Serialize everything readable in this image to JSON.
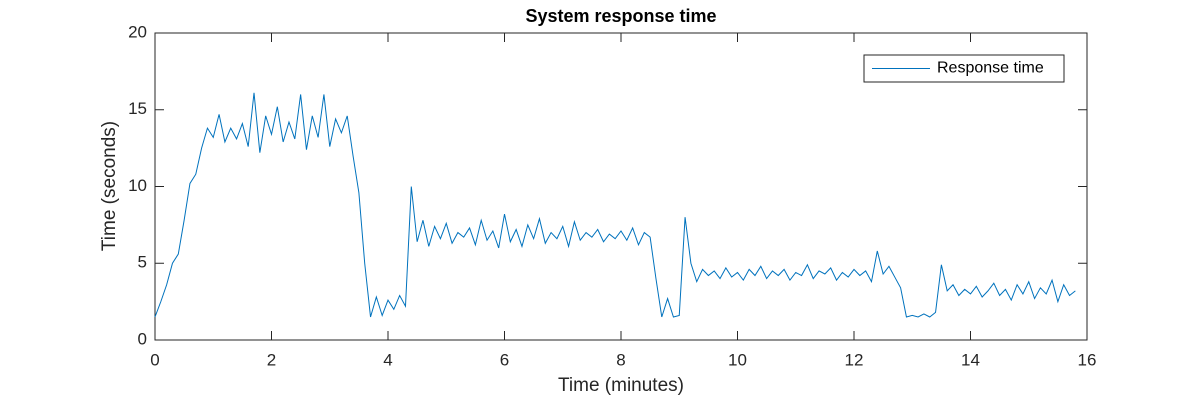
{
  "chart_data": {
    "type": "line",
    "title": "System response time",
    "xlabel": "Time (minutes)",
    "ylabel": "Time (seconds)",
    "x": [
      0,
      0.1,
      0.2,
      0.3,
      0.4,
      0.5,
      0.6,
      0.7,
      0.8,
      0.9,
      1,
      1.1,
      1.2,
      1.3,
      1.4,
      1.5,
      1.6,
      1.7,
      1.8,
      1.9,
      2,
      2.1,
      2.2,
      2.3,
      2.4,
      2.5,
      2.6,
      2.7,
      2.8,
      2.9,
      3,
      3.1,
      3.2,
      3.3,
      3.4,
      3.5,
      3.6,
      3.7,
      3.8,
      3.9,
      4,
      4.1,
      4.2,
      4.3,
      4.4,
      4.5,
      4.6,
      4.7,
      4.8,
      4.9,
      5,
      5.1,
      5.2,
      5.3,
      5.4,
      5.5,
      5.6,
      5.7,
      5.8,
      5.9,
      6,
      6.1,
      6.2,
      6.3,
      6.4,
      6.5,
      6.6,
      6.7,
      6.8,
      6.9,
      7,
      7.1,
      7.2,
      7.3,
      7.4,
      7.5,
      7.6,
      7.7,
      7.8,
      7.9,
      8,
      8.1,
      8.2,
      8.3,
      8.4,
      8.5,
      8.6,
      8.7,
      8.8,
      8.9,
      9,
      9.1,
      9.2,
      9.3,
      9.4,
      9.5,
      9.6,
      9.7,
      9.8,
      9.9,
      10,
      10.1,
      10.2,
      10.3,
      10.4,
      10.5,
      10.6,
      10.7,
      10.8,
      10.9,
      11,
      11.1,
      11.2,
      11.3,
      11.4,
      11.5,
      11.6,
      11.7,
      11.8,
      11.9,
      12,
      12.1,
      12.2,
      12.3,
      12.4,
      12.5,
      12.6,
      12.7,
      12.8,
      12.9,
      13,
      13.1,
      13.2,
      13.3,
      13.4,
      13.5,
      13.6,
      13.7,
      13.8,
      13.9,
      14,
      14.1,
      14.2,
      14.3,
      14.4,
      14.5,
      14.6,
      14.7,
      14.8,
      14.9,
      15,
      15.1,
      15.2,
      15.3,
      15.4,
      15.5,
      15.6,
      15.7,
      15.8
    ],
    "series": [
      {
        "name": "Response time",
        "color": "#0072bd",
        "values": [
          1.5,
          2.5,
          3.6,
          5.0,
          5.6,
          7.8,
          10.2,
          10.8,
          12.5,
          13.8,
          13.2,
          14.7,
          12.9,
          13.8,
          13.1,
          14.1,
          12.6,
          16.1,
          12.2,
          14.6,
          13.4,
          15.2,
          12.9,
          14.2,
          13.1,
          16.0,
          12.4,
          14.6,
          13.2,
          16.0,
          12.6,
          14.4,
          13.5,
          14.6,
          12.0,
          9.6,
          5.0,
          1.5,
          2.8,
          1.6,
          2.6,
          2.0,
          2.9,
          2.2,
          10.0,
          6.4,
          7.8,
          6.1,
          7.4,
          6.6,
          7.6,
          6.3,
          7.0,
          6.7,
          7.3,
          6.2,
          7.8,
          6.5,
          7.1,
          6.0,
          8.2,
          6.4,
          7.2,
          6.1,
          7.5,
          6.6,
          7.9,
          6.3,
          7.0,
          6.6,
          7.4,
          6.1,
          7.7,
          6.5,
          7.0,
          6.7,
          7.2,
          6.4,
          6.9,
          6.6,
          7.1,
          6.5,
          7.3,
          6.2,
          7.0,
          6.7,
          4.0,
          1.5,
          2.7,
          1.5,
          1.6,
          8.0,
          5.0,
          3.8,
          4.6,
          4.2,
          4.5,
          4.0,
          4.7,
          4.1,
          4.4,
          3.9,
          4.6,
          4.2,
          4.8,
          4.0,
          4.5,
          4.2,
          4.6,
          3.9,
          4.4,
          4.2,
          4.9,
          4.0,
          4.5,
          4.3,
          4.7,
          3.9,
          4.4,
          4.1,
          4.6,
          4.2,
          4.5,
          3.8,
          5.8,
          4.3,
          4.8,
          4.1,
          3.4,
          1.5,
          1.6,
          1.5,
          1.7,
          1.5,
          1.8,
          4.9,
          3.2,
          3.6,
          2.9,
          3.3,
          3.0,
          3.5,
          2.8,
          3.2,
          3.7,
          2.9,
          3.3,
          2.6,
          3.6,
          3.0,
          3.8,
          2.7,
          3.4,
          3.0,
          3.9,
          2.5,
          3.6,
          2.9,
          3.2
        ]
      }
    ],
    "xlim": [
      0,
      16
    ],
    "xticks": [
      0,
      2,
      4,
      6,
      8,
      10,
      12,
      14,
      16
    ],
    "ylim": [
      0,
      20
    ],
    "yticks": [
      0,
      5,
      10,
      15,
      20
    ],
    "legend": "upper-right"
  }
}
